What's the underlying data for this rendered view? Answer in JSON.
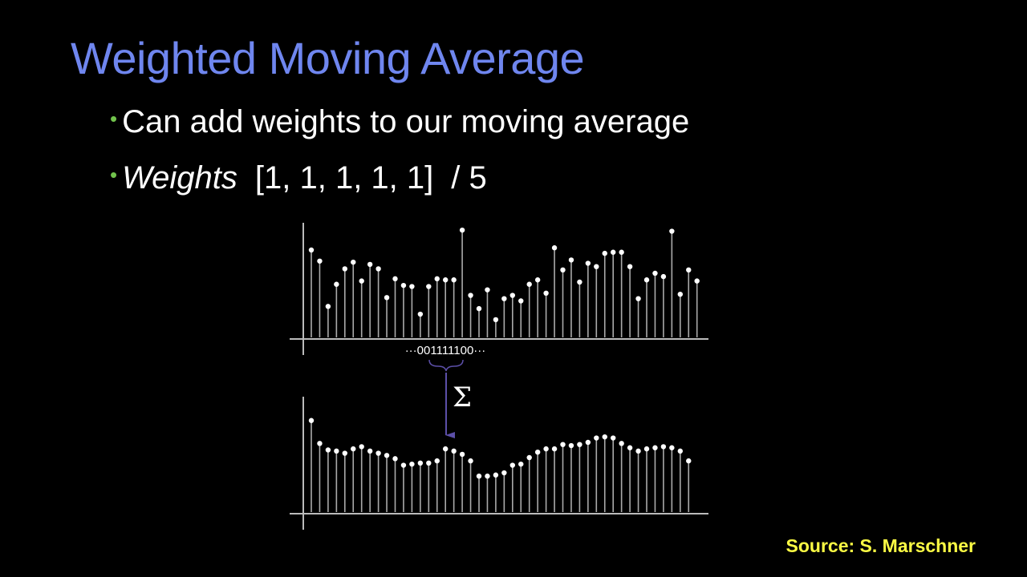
{
  "slide": {
    "title": "Weighted Moving Average",
    "bullets": {
      "b1": {
        "text": "Can add weights to our moving average"
      },
      "b2": {
        "label": "Weights",
        "weights": "[1, 1, 1, 1, 1]",
        "divisor": "/ 5"
      }
    },
    "source": "Source: S. Marschner"
  },
  "figure": {
    "kernel_label": "···001111100···",
    "sum_symbol": "Σ",
    "colors": {
      "stem": "#aaaaaa",
      "axis": "#bbbbbb",
      "dot": "#ffffff",
      "arrow": "#5c4fa8"
    },
    "input_signal": [
      0.79,
      0.69,
      0.28,
      0.48,
      0.62,
      0.68,
      0.51,
      0.66,
      0.62,
      0.36,
      0.53,
      0.47,
      0.46,
      0.21,
      0.46,
      0.53,
      0.52,
      0.52,
      0.97,
      0.38,
      0.26,
      0.43,
      0.16,
      0.35,
      0.38,
      0.33,
      0.48,
      0.52,
      0.4,
      0.81,
      0.61,
      0.7,
      0.5,
      0.67,
      0.64,
      0.76,
      0.77,
      0.77,
      0.64,
      0.35,
      0.52,
      0.58,
      0.55,
      0.96,
      0.39,
      0.61,
      0.51
    ],
    "output_signal": [
      0.84,
      0.63,
      0.57,
      0.56,
      0.54,
      0.58,
      0.6,
      0.56,
      0.54,
      0.52,
      0.49,
      0.43,
      0.44,
      0.45,
      0.45,
      0.47,
      0.58,
      0.56,
      0.53,
      0.47,
      0.33,
      0.33,
      0.34,
      0.36,
      0.43,
      0.44,
      0.5,
      0.55,
      0.58,
      0.58,
      0.62,
      0.61,
      0.62,
      0.64,
      0.68,
      0.69,
      0.68,
      0.63,
      0.59,
      0.56,
      0.58,
      0.59,
      0.6,
      0.59,
      0.56,
      0.47
    ]
  }
}
